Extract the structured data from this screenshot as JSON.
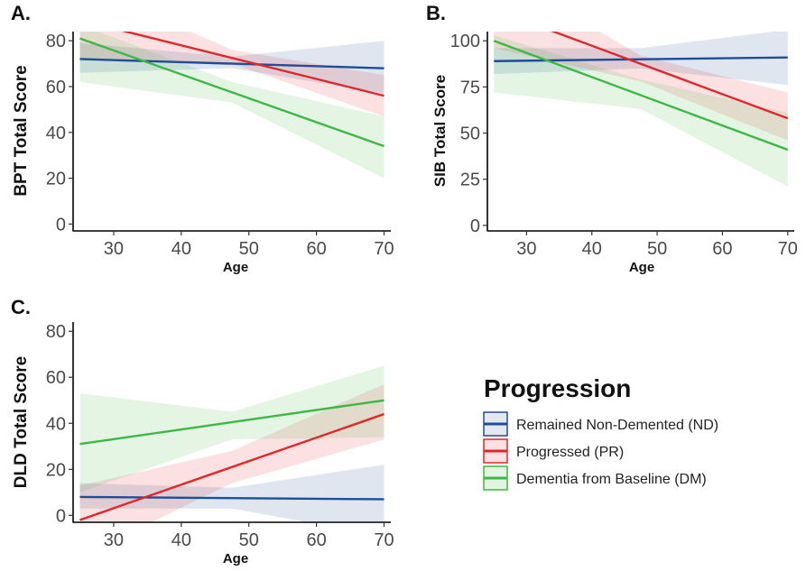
{
  "legend": {
    "title": "Progression",
    "entries": [
      {
        "key": "ND",
        "label": "Remained Non-Demented (ND)",
        "color": "#1f4e96"
      },
      {
        "key": "PR",
        "label": "Progressed (PR)",
        "color": "#e0282c"
      },
      {
        "key": "DM",
        "label": "Dementia from Baseline (DM)",
        "color": "#3db843"
      }
    ]
  },
  "chart_data": [
    {
      "panel": "A.",
      "type": "line",
      "xlabel": "Age",
      "ylabel": "BPT Total Score",
      "xlim": [
        24,
        71
      ],
      "ylim": [
        -3,
        84
      ],
      "xticks": [
        30,
        40,
        50,
        60,
        70
      ],
      "yticks": [
        0,
        20,
        40,
        60,
        80
      ],
      "grid": false,
      "series": [
        {
          "name": "Remained Non-Demented (ND)",
          "color": "#1f4e96",
          "x": [
            25,
            70
          ],
          "y": [
            72,
            68
          ],
          "ci_x": [
            25,
            47.5,
            70
          ],
          "ci_low": [
            66,
            68,
            57
          ],
          "ci_high": [
            79,
            73,
            80
          ]
        },
        {
          "name": "Progressed (PR)",
          "color": "#e0282c",
          "x": [
            25,
            70
          ],
          "y": [
            89,
            56
          ],
          "ci_x": [
            25,
            47.5,
            70
          ],
          "ci_low": [
            72,
            70,
            47
          ],
          "ci_high": [
            105,
            76,
            65
          ]
        },
        {
          "name": "Dementia from Baseline (DM)",
          "color": "#3db843",
          "x": [
            25,
            70
          ],
          "y": [
            81,
            34
          ],
          "ci_x": [
            25,
            47.5,
            70
          ],
          "ci_low": [
            62,
            53,
            20
          ],
          "ci_high": [
            87,
            62,
            47
          ]
        }
      ]
    },
    {
      "panel": "B.",
      "type": "line",
      "xlabel": "Age",
      "ylabel": "SIB Total Score",
      "xlim": [
        24,
        71
      ],
      "ylim": [
        -3,
        105
      ],
      "xticks": [
        30,
        40,
        50,
        60,
        70
      ],
      "yticks": [
        0,
        25,
        50,
        75,
        100
      ],
      "grid": false,
      "series": [
        {
          "name": "Remained Non-Demented (ND)",
          "color": "#1f4e96",
          "x": [
            25,
            70
          ],
          "y": [
            89,
            91
          ],
          "ci_x": [
            25,
            47.5,
            70
          ],
          "ci_low": [
            82,
            85,
            76
          ],
          "ci_high": [
            96,
            96,
            106
          ]
        },
        {
          "name": "Progressed (PR)",
          "color": "#e0282c",
          "x": [
            25,
            70
          ],
          "y": [
            117,
            58
          ],
          "ci_x": [
            25,
            47.5,
            70
          ],
          "ci_low": [
            96,
            78,
            46
          ],
          "ci_high": [
            138,
            92,
            72
          ]
        },
        {
          "name": "Dementia from Baseline (DM)",
          "color": "#3db843",
          "x": [
            25,
            70
          ],
          "y": [
            100,
            41
          ],
          "ci_x": [
            25,
            47.5,
            70
          ],
          "ci_low": [
            72,
            63,
            21
          ],
          "ci_high": [
            103,
            79,
            61
          ]
        }
      ]
    },
    {
      "panel": "C.",
      "type": "line",
      "xlabel": "Age",
      "ylabel": "DLD Total Score",
      "xlim": [
        24,
        71
      ],
      "ylim": [
        -3,
        84
      ],
      "xticks": [
        30,
        40,
        50,
        60,
        70
      ],
      "yticks": [
        0,
        20,
        40,
        60,
        80
      ],
      "grid": false,
      "series": [
        {
          "name": "Remained Non-Demented (ND)",
          "color": "#1f4e96",
          "x": [
            25,
            70
          ],
          "y": [
            8,
            7
          ],
          "ci_x": [
            25,
            47.5,
            70
          ],
          "ci_low": [
            3,
            3,
            -9
          ],
          "ci_high": [
            14,
            12,
            22
          ]
        },
        {
          "name": "Progressed (PR)",
          "color": "#e0282c",
          "x": [
            25,
            70
          ],
          "y": [
            -2,
            44
          ],
          "ci_x": [
            25,
            47.5,
            70
          ],
          "ci_low": [
            -18,
            14,
            33
          ],
          "ci_high": [
            13,
            28,
            57
          ]
        },
        {
          "name": "Dementia from Baseline (DM)",
          "color": "#3db843",
          "x": [
            25,
            70
          ],
          "y": [
            31,
            50
          ],
          "ci_x": [
            25,
            47.5,
            70
          ],
          "ci_low": [
            10,
            33,
            34
          ],
          "ci_high": [
            53,
            45,
            65
          ]
        }
      ]
    }
  ]
}
